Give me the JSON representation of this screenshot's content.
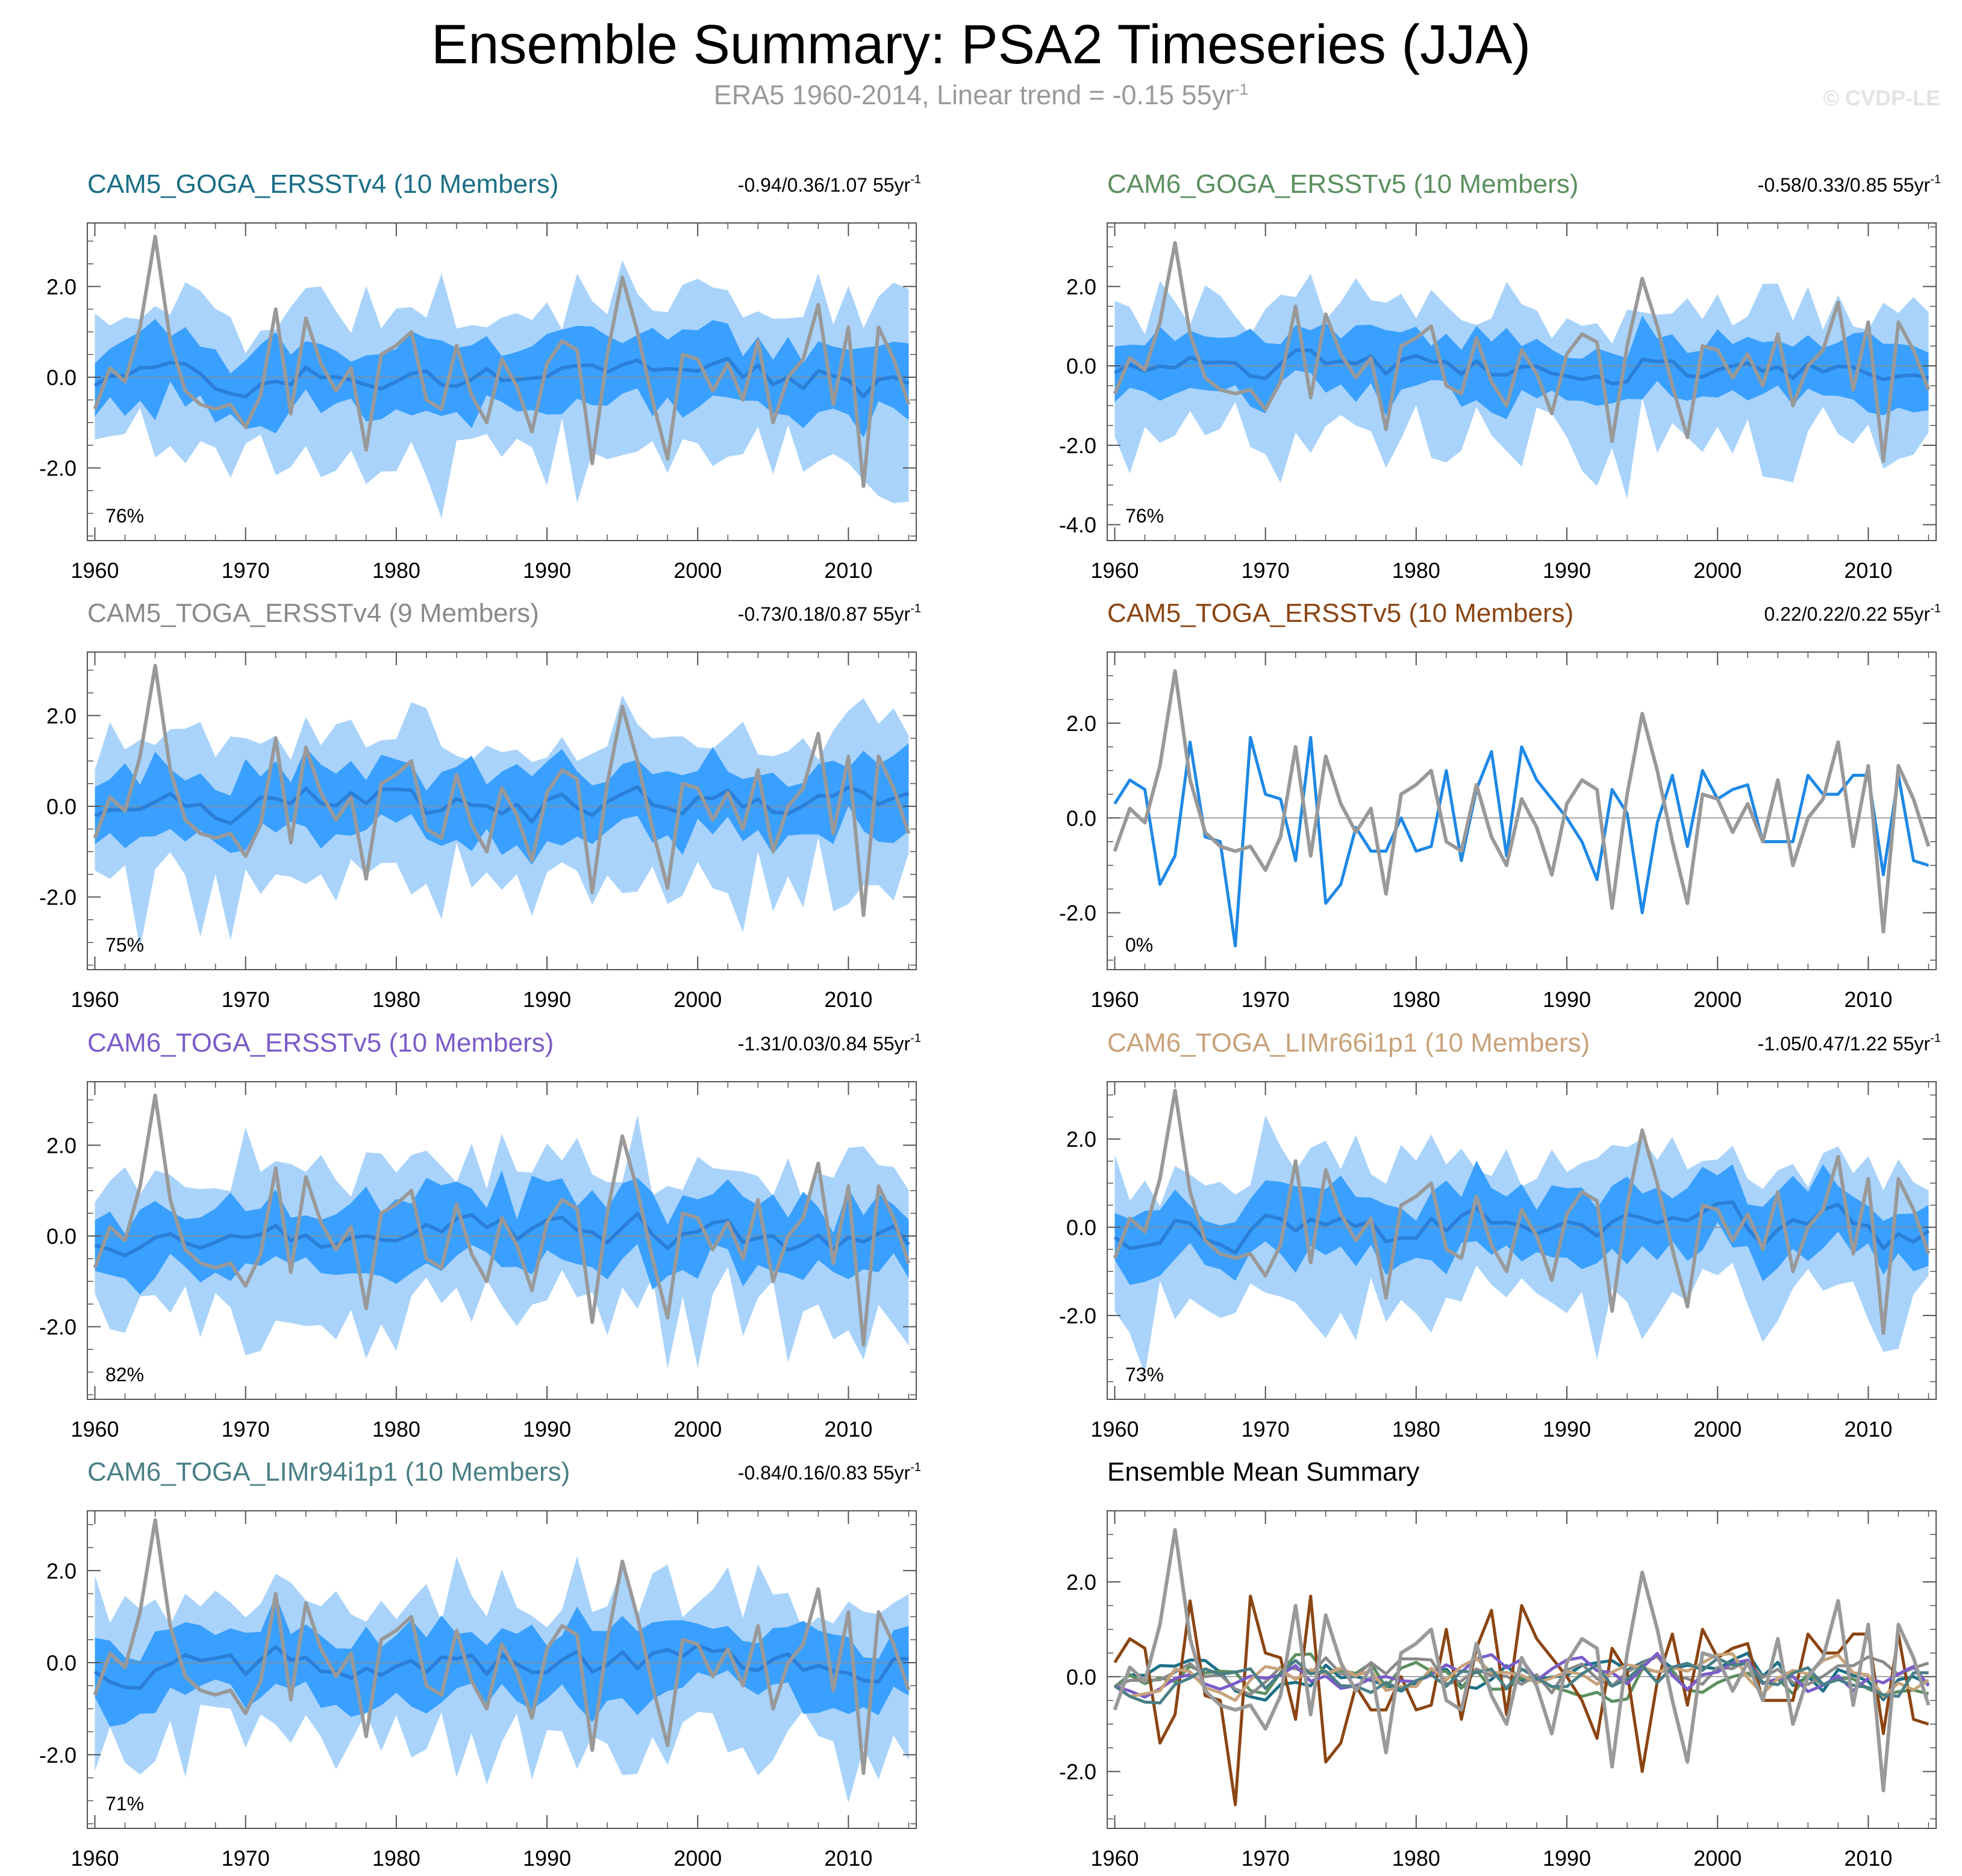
{
  "page": {
    "title": "Ensemble Summary: PSA2 Timeseries (JJA)",
    "subtitle": "ERA5 1960-2014, Linear trend = -0.15 55yr",
    "subtitle_exponent": "-1",
    "copyright": "© CVDP-LE"
  },
  "colors": {
    "obs": "#999999",
    "ens_mean": "#2a7fd8",
    "spread_inner": "#3aa0ff",
    "spread_outer": "#a9d3fb",
    "single_member": "#1e88e5"
  },
  "chart_data": [
    {
      "type": "line",
      "name": "CAM5_GOGA_ERSSTv4",
      "title": "CAM5_GOGA_ERSSTv4 (10 Members)",
      "title_color": "#1b6f86",
      "trend_text": "-0.94/0.36/1.07 55yr",
      "trend_exp": "-1",
      "percent": "76%",
      "ylim": [
        -3.6,
        3.4
      ],
      "yticks": [
        -2,
        0,
        2
      ],
      "ytick_labels": [
        "-2.0",
        "0.0",
        "2.0"
      ],
      "xlim": [
        1959.5,
        2014.5
      ],
      "xticks": [
        1960,
        1970,
        1980,
        1990,
        2000,
        2010
      ],
      "xtick_labels": [
        "1960",
        "1970",
        "1980",
        "1990",
        "2000",
        "2010"
      ],
      "seed": 11,
      "mean_amp": 0.25
    },
    {
      "type": "line",
      "name": "CAM6_GOGA_ERSSTv5",
      "title": "CAM6_GOGA_ERSSTv5 (10 Members)",
      "title_color": "#5b8f5f",
      "trend_text": "-0.58/0.33/0.85 55yr",
      "trend_exp": "-1",
      "percent": "76%",
      "ylim": [
        -4.4,
        3.6
      ],
      "yticks": [
        -4,
        -2,
        0,
        2
      ],
      "ytick_labels": [
        "-4.0",
        "-2.0",
        "0.0",
        "2.0"
      ],
      "xlim": [
        1959.5,
        2014.5
      ],
      "xticks": [
        1960,
        1970,
        1980,
        1990,
        2000,
        2010
      ],
      "xtick_labels": [
        "1960",
        "1970",
        "1980",
        "1990",
        "2000",
        "2010"
      ],
      "seed": 23,
      "mean_amp": 0.25
    },
    {
      "type": "line",
      "name": "CAM5_TOGA_ERSSTv4",
      "title": "CAM5_TOGA_ERSSTv4 (9 Members)",
      "title_color": "#8a8a8a",
      "trend_text": "-0.73/0.18/0.87 55yr",
      "trend_exp": "-1",
      "percent": "75%",
      "ylim": [
        -3.6,
        3.4
      ],
      "yticks": [
        -2,
        0,
        2
      ],
      "ytick_labels": [
        "-2.0",
        "0.0",
        "2.0"
      ],
      "xlim": [
        1959.5,
        2014.5
      ],
      "xticks": [
        1960,
        1970,
        1980,
        1990,
        2000,
        2010
      ],
      "xtick_labels": [
        "1960",
        "1970",
        "1980",
        "1990",
        "2000",
        "2010"
      ],
      "seed": 37,
      "mean_amp": 0.3
    },
    {
      "type": "line",
      "name": "CAM5_TOGA_ERSSTv5",
      "title": "CAM5_TOGA_ERSSTv5 (10 Members)",
      "title_color": "#8b4513",
      "trend_text": "0.22/0.22/0.22 55yr",
      "trend_exp": "-1",
      "percent": "0%",
      "single": true,
      "ylim": [
        -3.2,
        3.5
      ],
      "yticks": [
        -2,
        0,
        2
      ],
      "ytick_labels": [
        "-2.0",
        "0.0",
        "2.0"
      ],
      "xlim": [
        1959.5,
        2014.5
      ],
      "xticks": [
        1960,
        1970,
        1980,
        1990,
        2000,
        2010
      ],
      "xtick_labels": [
        "1960",
        "1970",
        "1980",
        "1990",
        "2000",
        "2010"
      ],
      "member_series": [
        0.3,
        0.8,
        0.6,
        -1.4,
        -0.8,
        1.6,
        -0.4,
        -0.5,
        -2.7,
        1.7,
        0.5,
        0.4,
        -0.9,
        1.7,
        -1.8,
        -1.4,
        -0.2,
        -0.7,
        -0.7,
        0.0,
        -0.7,
        -0.6,
        1.0,
        -0.9,
        0.6,
        1.4,
        -0.8,
        1.5,
        0.8,
        0.4,
        0.0,
        -0.5,
        -1.3,
        0.6,
        0.1,
        -2.0,
        -0.1,
        0.9,
        -0.6,
        1.0,
        0.4,
        0.6,
        0.7,
        -0.5,
        -0.5,
        -0.5,
        0.9,
        0.5,
        0.5,
        0.9,
        0.9,
        -1.2,
        0.9,
        -0.9,
        -1.0
      ]
    },
    {
      "type": "line",
      "name": "CAM6_TOGA_ERSSTv5",
      "title": "CAM6_TOGA_ERSSTv5 (10 Members)",
      "title_color": "#7b5cc8",
      "trend_text": "-1.31/0.03/0.84 55yr",
      "trend_exp": "-1",
      "percent": "82%",
      "ylim": [
        -3.6,
        3.4
      ],
      "yticks": [
        -2,
        0,
        2
      ],
      "ytick_labels": [
        "-2.0",
        "0.0",
        "2.0"
      ],
      "xlim": [
        1959.5,
        2014.5
      ],
      "xticks": [
        1960,
        1970,
        1980,
        1990,
        2000,
        2010
      ],
      "xtick_labels": [
        "1960",
        "1970",
        "1980",
        "1990",
        "2000",
        "2010"
      ],
      "seed": 53,
      "mean_amp": 0.3
    },
    {
      "type": "line",
      "name": "CAM6_TOGA_LIMr66i1p1",
      "title": "CAM6_TOGA_LIMr66i1p1 (10 Members)",
      "title_color": "#c8a27a",
      "trend_text": "-1.05/0.47/1.22 55yr",
      "trend_exp": "-1",
      "percent": "73%",
      "ylim": [
        -3.9,
        3.3
      ],
      "yticks": [
        -2,
        0,
        2
      ],
      "ytick_labels": [
        "-2.0",
        "0.0",
        "2.0"
      ],
      "xlim": [
        1959.5,
        2014.5
      ],
      "xticks": [
        1960,
        1970,
        1980,
        1990,
        2000,
        2010
      ],
      "xtick_labels": [
        "1960",
        "1970",
        "1980",
        "1990",
        "2000",
        "2010"
      ],
      "seed": 67,
      "mean_amp": 0.35
    },
    {
      "type": "line",
      "name": "CAM6_TOGA_LIMr94i1p1",
      "title": "CAM6_TOGA_LIMr94i1p1 (10 Members)",
      "title_color": "#4a7f86",
      "trend_text": "-0.84/0.16/0.83 55yr",
      "trend_exp": "-1",
      "percent": "71%",
      "ylim": [
        -3.6,
        3.3
      ],
      "yticks": [
        -2,
        0,
        2
      ],
      "ytick_labels": [
        "-2.0",
        "0.0",
        "2.0"
      ],
      "xlim": [
        1959.5,
        2014.5
      ],
      "xticks": [
        1960,
        1970,
        1980,
        1990,
        2000,
        2010
      ],
      "xtick_labels": [
        "1960",
        "1970",
        "1980",
        "1990",
        "2000",
        "2010"
      ],
      "seed": 79,
      "mean_amp": 0.3
    },
    {
      "type": "line",
      "name": "Ensemble Mean Summary",
      "title": "Ensemble Mean Summary",
      "title_color": "#000000",
      "summary": true,
      "ylim": [
        -3.2,
        3.5
      ],
      "yticks": [
        -2,
        0,
        2
      ],
      "ytick_labels": [
        "-2.0",
        "0.0",
        "2.0"
      ],
      "xlim": [
        1959.5,
        2014.5
      ],
      "xticks": [
        1960,
        1970,
        1980,
        1990,
        2000,
        2010
      ],
      "xtick_labels": [
        "1960",
        "1970",
        "1980",
        "1990",
        "2000",
        "2010"
      ],
      "summary_colors": [
        "#1b6f86",
        "#5b8f5f",
        "#8a8a8a",
        "#8b4513",
        "#7b5cc8",
        "#c8a27a",
        "#4a7f86"
      ]
    }
  ],
  "obs_series": {
    "start_year": 1960,
    "values": [
      -0.7,
      0.2,
      -0.1,
      1.1,
      3.1,
      0.8,
      -0.3,
      -0.6,
      -0.7,
      -0.6,
      -1.1,
      -0.4,
      1.5,
      -0.8,
      1.3,
      0.3,
      -0.3,
      0.2,
      -1.6,
      0.5,
      0.7,
      1.0,
      -0.5,
      -0.7,
      0.7,
      -0.4,
      -1.0,
      0.4,
      -0.2,
      -1.2,
      0.3,
      0.8,
      0.6,
      -1.9,
      0.5,
      2.2,
      1.0,
      -0.5,
      -1.8,
      0.5,
      0.4,
      -0.3,
      0.3,
      -0.5,
      0.8,
      -1.0,
      0.0,
      0.4,
      1.6,
      -0.6,
      1.1,
      -2.4,
      1.1,
      0.4,
      -0.6
    ]
  }
}
